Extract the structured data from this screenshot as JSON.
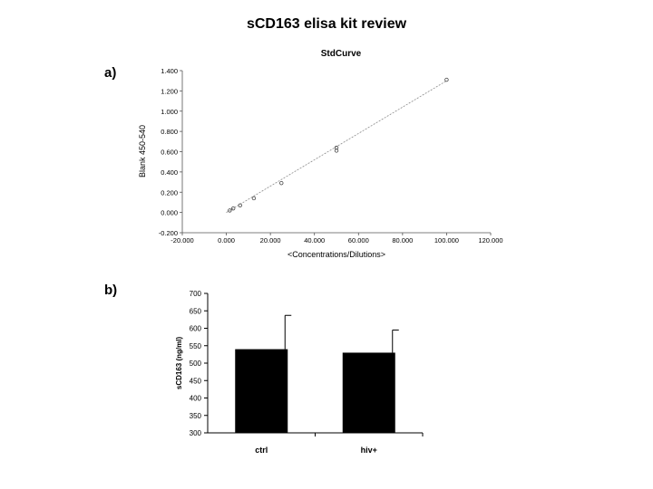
{
  "title": "sCD163 elisa kit review",
  "panel_a_label": "a)",
  "panel_b_label": "b)",
  "chart_data": [
    {
      "type": "scatter",
      "title": "StdCurve",
      "xlabel": "<Concentrations/Dilutions>",
      "ylabel": "Blank 450-540",
      "xlim": [
        -20,
        120
      ],
      "ylim": [
        -0.2,
        1.4
      ],
      "x_ticks": [
        "-20.000",
        "0.000",
        "20.000",
        "40.000",
        "60.000",
        "80.000",
        "100.000",
        "120.000"
      ],
      "y_ticks": [
        "-0.200",
        "0.000",
        "0.200",
        "0.400",
        "0.600",
        "0.800",
        "1.000",
        "1.200",
        "1.400"
      ],
      "x_tick_values": [
        -20,
        0,
        20,
        40,
        60,
        80,
        100,
        120
      ],
      "y_tick_values": [
        -0.2,
        0,
        0.2,
        0.4,
        0.6,
        0.8,
        1.0,
        1.2,
        1.4
      ],
      "points": [
        {
          "x": 1.56,
          "y": 0.02
        },
        {
          "x": 3.13,
          "y": 0.04
        },
        {
          "x": 6.25,
          "y": 0.07
        },
        {
          "x": 12.5,
          "y": 0.14
        },
        {
          "x": 25,
          "y": 0.29
        },
        {
          "x": 50,
          "y": 0.61
        },
        {
          "x": 50,
          "y": 0.64
        },
        {
          "x": 100,
          "y": 1.31
        }
      ],
      "fit_line": {
        "x": [
          0,
          100
        ],
        "y": [
          0.0,
          1.3
        ]
      },
      "grid": false,
      "legend": "none"
    },
    {
      "type": "bar",
      "categories": [
        "ctrl",
        "hiv+"
      ],
      "values": [
        540,
        530
      ],
      "errors": [
        97,
        65
      ],
      "ylabel": "sCD163 (ng/ml)",
      "xlabel": "",
      "ylim": [
        300,
        700
      ],
      "y_ticks": [
        "300",
        "350",
        "400",
        "450",
        "500",
        "550",
        "600",
        "650",
        "700"
      ],
      "y_tick_values": [
        300,
        350,
        400,
        450,
        500,
        550,
        600,
        650,
        700
      ],
      "bar_color": "#000000",
      "grid": false,
      "legend": "none"
    }
  ]
}
